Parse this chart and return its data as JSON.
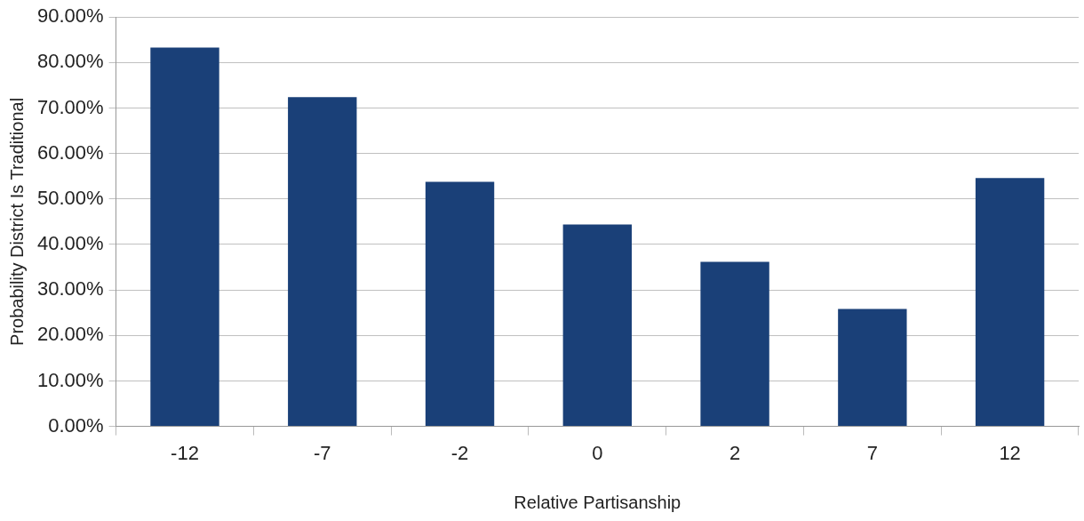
{
  "chart_data": {
    "type": "bar",
    "xlabel": "Relative Partisanship",
    "ylabel": "Probability District Is Traditional",
    "categories": [
      "-12",
      "-7",
      "-2",
      "0",
      "2",
      "7",
      "12"
    ],
    "values": [
      83.3,
      72.4,
      53.8,
      44.4,
      36.2,
      25.8,
      54.6
    ],
    "color": "#1a4078",
    "ylim": [
      0,
      90
    ],
    "yticks": [
      {
        "value": 0,
        "label": "0.00%"
      },
      {
        "value": 10,
        "label": "10.00%"
      },
      {
        "value": 20,
        "label": "20.00%"
      },
      {
        "value": 30,
        "label": "30.00%"
      },
      {
        "value": 40,
        "label": "40.00%"
      },
      {
        "value": 50,
        "label": "50.00%"
      },
      {
        "value": 60,
        "label": "60.00%"
      },
      {
        "value": 70,
        "label": "70.00%"
      },
      {
        "value": 80,
        "label": "80.00%"
      },
      {
        "value": 90,
        "label": "90.00%"
      }
    ],
    "grid": "y",
    "legend": false
  }
}
